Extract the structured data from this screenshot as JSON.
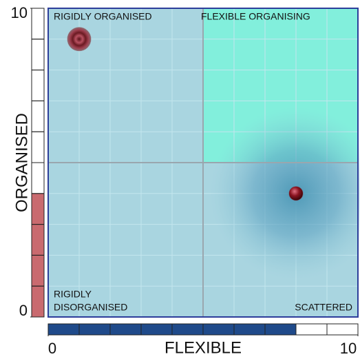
{
  "chart_data": {
    "type": "scatter",
    "xlabel": "FLEXIBLE",
    "ylabel": "ORGANISED",
    "xlim": [
      0,
      10
    ],
    "ylim": [
      0,
      10
    ],
    "xticks": [
      0,
      10
    ],
    "yticks": [
      0,
      10
    ],
    "quadrant_labels": {
      "top_left": "RIGIDLY ORGANISED",
      "top_right": "FLEXIBLE ORGANISING",
      "bottom_left": [
        "RIGIDLY",
        "DISORGANISED"
      ],
      "bottom_right": "SCATTERED"
    },
    "series": [
      {
        "color": "#8a2a30",
        "x": [
          1
        ],
        "values": [
          9
        ]
      },
      {
        "color": "#8a1420",
        "x": [
          8
        ],
        "values": [
          4
        ]
      }
    ],
    "gauge_colors": {
      "y": "#c96a6f",
      "x": "#1f4a8a"
    },
    "grid": true
  }
}
